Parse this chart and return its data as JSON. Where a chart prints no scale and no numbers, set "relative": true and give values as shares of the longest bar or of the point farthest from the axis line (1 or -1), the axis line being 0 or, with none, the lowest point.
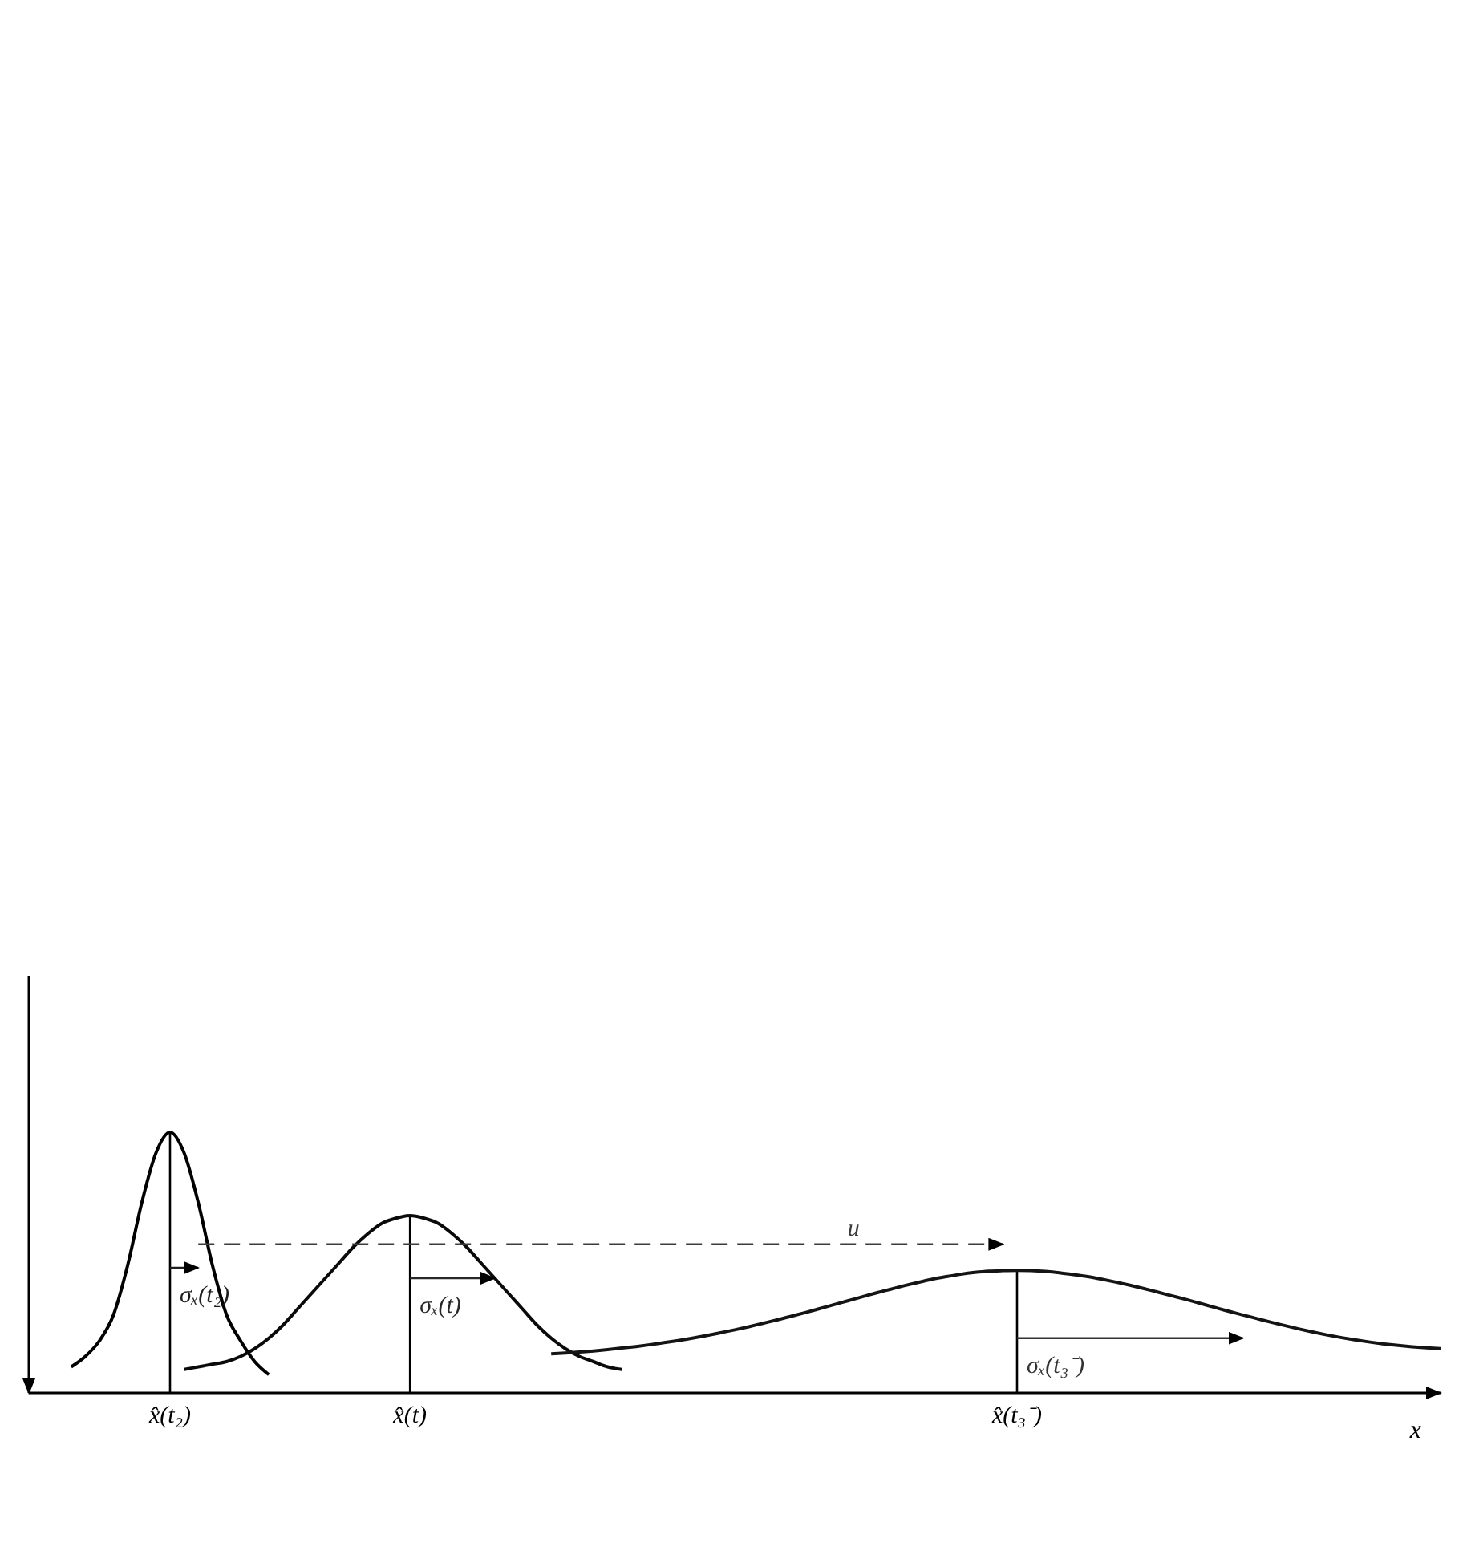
{
  "chart_data": {
    "type": "line",
    "relative": true,
    "xlabel": "x",
    "categories": [
      null,
      null,
      null,
      null,
      null,
      null,
      null,
      null,
      null,
      null,
      "x̂(t₂)",
      null,
      null,
      null,
      null,
      null,
      null,
      null,
      null,
      null,
      null,
      null,
      null,
      null,
      null,
      null,
      null,
      "x̂(t)",
      null,
      null,
      null,
      null,
      null,
      null,
      null,
      null,
      null,
      null,
      null,
      null,
      null,
      null,
      null,
      null,
      null,
      null,
      null,
      null,
      null,
      null,
      null,
      null,
      null,
      null,
      null,
      null,
      null,
      null,
      null,
      null,
      null,
      null,
      null,
      null,
      null,
      null,
      null,
      null,
      null,
      null,
      "x̂(t₃⁻)",
      null,
      null,
      null,
      null,
      null,
      null,
      null,
      null,
      null,
      null,
      null,
      null,
      null,
      null,
      null,
      null,
      null,
      null,
      null,
      null,
      null,
      null,
      null,
      null,
      null,
      null,
      null,
      null,
      null,
      null
    ],
    "tick_labels": "x",
    "marker": "none",
    "line_style": "solid",
    "series": [
      {
        "color": "#000000",
        "values": [
          null,
          null,
          null,
          0.1,
          0.14,
          0.2,
          0.3,
          0.49,
          0.73,
          0.92,
          1,
          0.92,
          0.73,
          0.49,
          0.3,
          0.2,
          0.12,
          0.07,
          null,
          null,
          null,
          null,
          null,
          null,
          null,
          null,
          null,
          null,
          null,
          null,
          null,
          null,
          null,
          null,
          null,
          null,
          null,
          null,
          null,
          null,
          null,
          null,
          null,
          null,
          null,
          null,
          null,
          null,
          null,
          null,
          null,
          null,
          null,
          null,
          null,
          null,
          null,
          null,
          null,
          null,
          null,
          null,
          null,
          null,
          null,
          null,
          null,
          null,
          null,
          null,
          null,
          null,
          null,
          null,
          null,
          null,
          null,
          null,
          null,
          null,
          null,
          null,
          null,
          null,
          null,
          null,
          null,
          null,
          null,
          null,
          null,
          null,
          null,
          null,
          null,
          null,
          null,
          null,
          null,
          null,
          null
        ]
      },
      {
        "color": "#0a0a0a",
        "values": [
          null,
          null,
          null,
          null,
          null,
          null,
          null,
          null,
          null,
          null,
          null,
          0.09,
          0.1,
          0.11,
          0.12,
          0.14,
          0.17,
          0.21,
          0.26,
          0.32,
          0.38,
          0.44,
          0.5,
          0.56,
          0.61,
          0.65,
          0.67,
          0.68,
          0.67,
          0.65,
          0.61,
          0.56,
          0.5,
          0.44,
          0.38,
          0.32,
          0.26,
          0.21,
          0.17,
          0.14,
          0.12,
          0.1,
          0.09,
          null,
          null,
          null,
          null,
          null,
          null,
          null,
          null,
          null,
          null,
          null,
          null,
          null,
          null,
          null,
          null,
          null,
          null,
          null,
          null,
          null,
          null,
          null,
          null,
          null,
          null,
          null,
          null,
          null,
          null,
          null,
          null,
          null,
          null,
          null,
          null,
          null,
          null,
          null,
          null,
          null,
          null,
          null,
          null,
          null,
          null,
          null,
          null,
          null,
          null,
          null,
          null,
          null,
          null,
          null,
          null,
          null,
          null
        ]
      },
      {
        "color": "#141414",
        "values": [
          null,
          null,
          null,
          null,
          null,
          null,
          null,
          null,
          null,
          null,
          null,
          null,
          null,
          null,
          null,
          null,
          null,
          null,
          null,
          null,
          null,
          null,
          null,
          null,
          null,
          null,
          null,
          null,
          null,
          null,
          null,
          null,
          null,
          null,
          null,
          null,
          null,
          0.15,
          0.153,
          0.157,
          0.161,
          0.166,
          0.172,
          0.178,
          0.185,
          0.193,
          0.201,
          0.21,
          0.22,
          0.231,
          0.242,
          0.254,
          0.267,
          0.28,
          0.294,
          0.308,
          0.323,
          0.338,
          0.353,
          0.368,
          0.383,
          0.397,
          0.411,
          0.424,
          0.436,
          0.446,
          0.455,
          0.462,
          0.467,
          0.469,
          0.47,
          0.469,
          0.466,
          0.461,
          0.454,
          0.446,
          0.436,
          0.425,
          0.413,
          0.4,
          0.386,
          0.372,
          0.358,
          0.343,
          0.328,
          0.313,
          0.299,
          0.285,
          0.271,
          0.258,
          0.245,
          0.233,
          0.222,
          0.212,
          0.203,
          0.195,
          0.188,
          0.182,
          0.177,
          0.173,
          0.17
        ]
      },
      {
        "name": "σₓ(t₂)",
        "color": "#1e1e1e",
        "values": [
          null,
          null,
          null,
          null,
          null,
          null,
          null,
          null,
          null,
          null,
          0.48,
          0.48,
          0.48,
          null,
          null,
          null,
          null,
          null,
          null,
          null,
          null,
          null,
          null,
          null,
          null,
          null,
          null,
          null,
          null,
          null,
          null,
          null,
          null,
          null,
          null,
          null,
          null,
          null,
          null,
          null,
          null,
          null,
          null,
          null,
          null,
          null,
          null,
          null,
          null,
          null,
          null,
          null,
          null,
          null,
          null,
          null,
          null,
          null,
          null,
          null,
          null,
          null,
          null,
          null,
          null,
          null,
          null,
          null,
          null,
          null,
          null,
          null,
          null,
          null,
          null,
          null,
          null,
          null,
          null,
          null,
          null,
          null,
          null,
          null,
          null,
          null,
          null,
          null,
          null,
          null,
          null,
          null,
          null,
          null,
          null,
          null,
          null,
          null,
          null,
          null,
          null
        ]
      },
      {
        "name": "σₓ(t)",
        "color": "#282828",
        "values": [
          null,
          null,
          null,
          null,
          null,
          null,
          null,
          null,
          null,
          null,
          null,
          null,
          null,
          null,
          null,
          null,
          null,
          null,
          null,
          null,
          null,
          null,
          null,
          null,
          null,
          null,
          null,
          0.44,
          0.44,
          0.44,
          0.44,
          0.44,
          0.44,
          0.44,
          null,
          null,
          null,
          null,
          null,
          null,
          null,
          null,
          null,
          null,
          null,
          null,
          null,
          null,
          null,
          null,
          null,
          null,
          null,
          null,
          null,
          null,
          null,
          null,
          null,
          null,
          null,
          null,
          null,
          null,
          null,
          null,
          null,
          null,
          null,
          null,
          null,
          null,
          null,
          null,
          null,
          null,
          null,
          null,
          null,
          null,
          null,
          null,
          null,
          null,
          null,
          null,
          null,
          null,
          null,
          null,
          null,
          null,
          null,
          null,
          null,
          null,
          null,
          null,
          null,
          null,
          null
        ]
      },
      {
        "name": "σₓ(t₃⁻)",
        "color": "#323232",
        "values": [
          null,
          null,
          null,
          null,
          null,
          null,
          null,
          null,
          null,
          null,
          null,
          null,
          null,
          null,
          null,
          null,
          null,
          null,
          null,
          null,
          null,
          null,
          null,
          null,
          null,
          null,
          null,
          null,
          null,
          null,
          null,
          null,
          null,
          null,
          null,
          null,
          null,
          null,
          null,
          null,
          null,
          null,
          null,
          null,
          null,
          null,
          null,
          null,
          null,
          null,
          null,
          null,
          null,
          null,
          null,
          null,
          null,
          null,
          null,
          null,
          null,
          null,
          null,
          null,
          null,
          null,
          null,
          null,
          null,
          null,
          0.21,
          0.21,
          0.21,
          0.21,
          0.21,
          0.21,
          0.21,
          0.21,
          0.21,
          0.21,
          0.21,
          0.21,
          0.21,
          0.21,
          0.21,
          0.21,
          0.21,
          null,
          null,
          null,
          null,
          null,
          null,
          null,
          null,
          null,
          null,
          null,
          null,
          null,
          null
        ]
      },
      {
        "name": "u",
        "color": "#3c3c3c",
        "line_style": "dashed",
        "values": [
          null,
          null,
          null,
          null,
          null,
          null,
          null,
          null,
          null,
          null,
          null,
          null,
          0.57,
          0.57,
          0.57,
          0.57,
          0.57,
          0.57,
          0.57,
          0.57,
          0.57,
          0.57,
          0.57,
          0.57,
          0.57,
          0.57,
          0.57,
          0.57,
          0.57,
          0.57,
          0.57,
          0.57,
          0.57,
          0.57,
          0.57,
          0.57,
          0.57,
          0.57,
          0.57,
          0.57,
          0.57,
          0.57,
          0.57,
          0.57,
          0.57,
          0.57,
          0.57,
          0.57,
          0.57,
          0.57,
          0.57,
          0.57,
          0.57,
          0.57,
          0.57,
          0.57,
          0.57,
          0.57,
          0.57,
          0.57,
          0.57,
          0.57,
          0.57,
          0.57,
          0.57,
          0.57,
          0.57,
          0.57,
          0.57,
          0.57,
          null,
          null,
          null,
          null,
          null,
          null,
          null,
          null,
          null,
          null,
          null,
          null,
          null,
          null,
          null,
          null,
          null,
          null,
          null,
          null,
          null,
          null,
          null,
          null,
          null,
          null,
          null,
          null,
          null,
          null,
          null
        ]
      }
    ],
    "ref_lines": [
      {
        "axis": "x",
        "value": "x̂(t₂)"
      },
      {
        "axis": "x",
        "value": "x̂(t)"
      },
      {
        "axis": "x",
        "value": "x̂(t₃⁻)"
      }
    ]
  }
}
